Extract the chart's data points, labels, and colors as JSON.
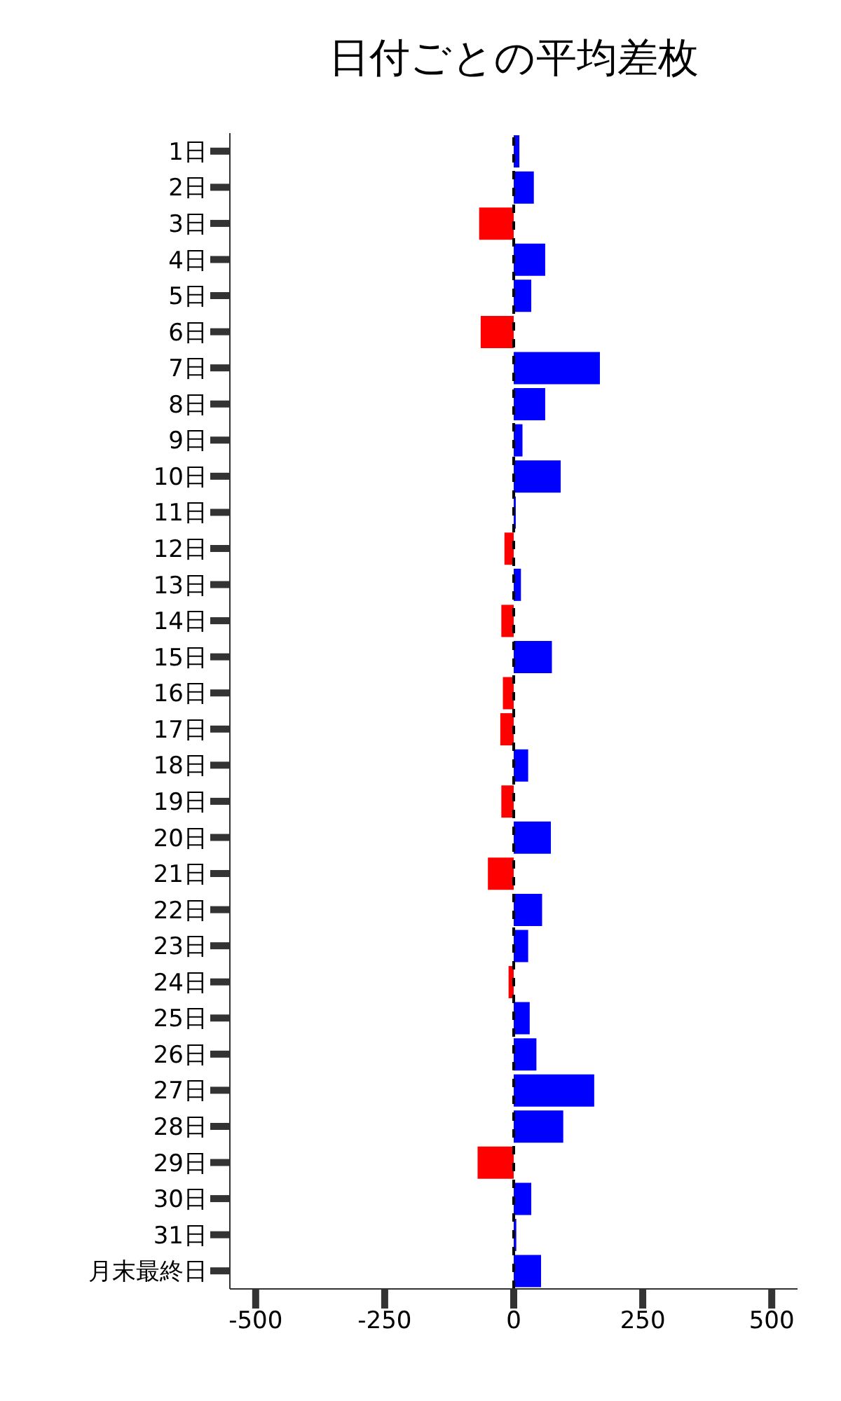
{
  "chart_data": {
    "type": "bar",
    "orientation": "horizontal",
    "title": "日付ごとの平均差枚",
    "categories": [
      "1日",
      "2日",
      "3日",
      "4日",
      "5日",
      "6日",
      "7日",
      "8日",
      "9日",
      "10日",
      "11日",
      "12日",
      "13日",
      "14日",
      "15日",
      "16日",
      "17日",
      "18日",
      "19日",
      "20日",
      "21日",
      "22日",
      "23日",
      "24日",
      "25日",
      "26日",
      "27日",
      "28日",
      "29日",
      "30日",
      "31日",
      "月末最終日"
    ],
    "values": [
      11,
      39,
      -67,
      61,
      34,
      -64,
      167,
      61,
      17,
      91,
      4,
      -18,
      14,
      -24,
      74,
      -21,
      -26,
      28,
      -24,
      72,
      -50,
      55,
      28,
      -10,
      31,
      44,
      156,
      96,
      -70,
      34,
      5,
      53
    ],
    "colors": [
      "#0000ff",
      "#0000ff",
      "#ff0000",
      "#0000ff",
      "#0000ff",
      "#ff0000",
      "#0000ff",
      "#0000ff",
      "#0000ff",
      "#0000ff",
      "#0000ff",
      "#ff0000",
      "#0000ff",
      "#ff0000",
      "#0000ff",
      "#ff0000",
      "#ff0000",
      "#0000ff",
      "#ff0000",
      "#0000ff",
      "#ff0000",
      "#0000ff",
      "#0000ff",
      "#ff0000",
      "#0000ff",
      "#0000ff",
      "#0000ff",
      "#0000ff",
      "#ff0000",
      "#0000ff",
      "#0000ff",
      "#0000ff"
    ],
    "xlim": [
      -550,
      550
    ],
    "xticks": [
      -500,
      -250,
      0,
      250,
      500
    ],
    "ref_lines": [
      {
        "axis": "x",
        "value": 0,
        "color": "#000000",
        "line_style": "dashed"
      }
    ],
    "grid": false
  }
}
